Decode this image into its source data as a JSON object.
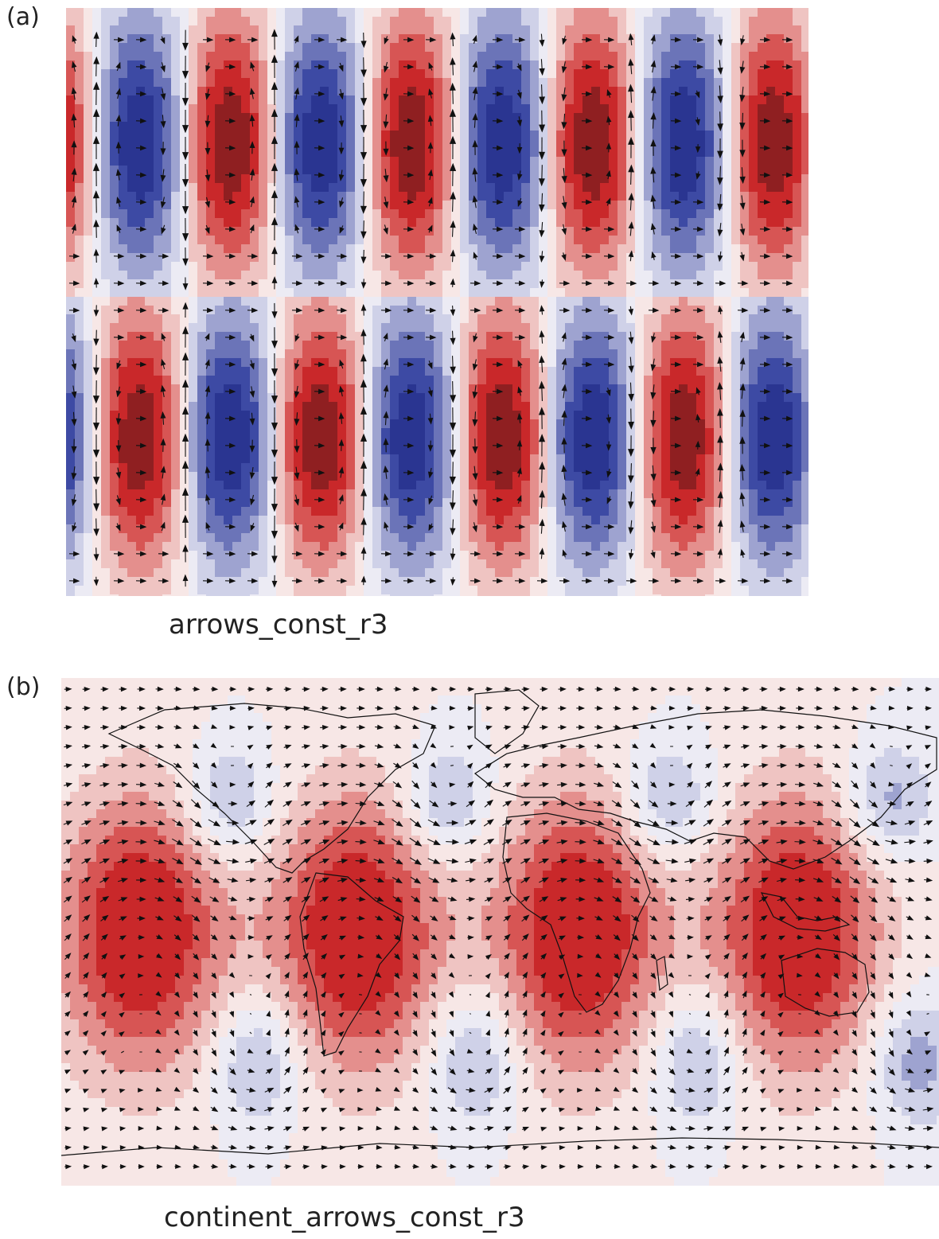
{
  "panels": [
    {
      "label": "(a)",
      "caption": "arrows_const_r3",
      "continents": false,
      "colors": {
        "positive": "#c8282a",
        "negative": "#2c3a97",
        "background": "#fbeceb"
      }
    },
    {
      "label": "(b)",
      "caption": "continent_arrows_const_r3",
      "continents": true,
      "colors": {
        "positive": "#d42d2e",
        "negative": "#8e93c8",
        "background": "#fbeeee"
      }
    }
  ],
  "colormap": [
    "#2a3591",
    "#3d4aa4",
    "#6b74b8",
    "#9ea3d0",
    "#cfd1e8",
    "#ecebf4",
    "#f7e7e6",
    "#efc4c2",
    "#e48f8d",
    "#d75554",
    "#c9282a",
    "#8f1f21"
  ]
}
